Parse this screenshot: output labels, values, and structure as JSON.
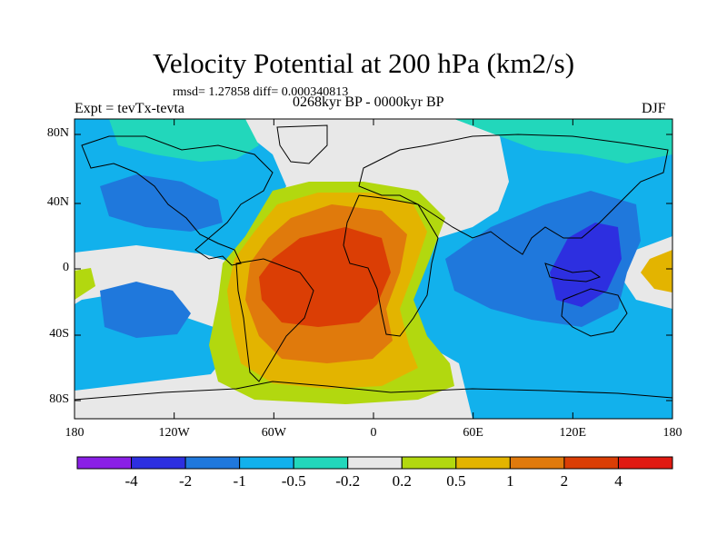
{
  "header": {
    "title": "Velocity Potential at 200 hPa (km2/s)",
    "stats": "rmsd= 1.27858 diff= 0.000340813",
    "experiment": "Expt = tevTx-tevta",
    "period": "0268kyr BP - 0000kyr BP",
    "season": "DJF"
  },
  "axes": {
    "lat_ticks": [
      "80N",
      "40N",
      "0",
      "40S",
      "80S"
    ],
    "lon_ticks": [
      "180",
      "120W",
      "60W",
      "0",
      "60E",
      "120E",
      "180"
    ]
  },
  "colorbar": {
    "labels": [
      "-4",
      "-2",
      "-1",
      "-0.5",
      "-0.2",
      "0.2",
      "0.5",
      "1",
      "2",
      "4"
    ],
    "colors": [
      "#8a1fe6",
      "#2d2fe0",
      "#1f78dc",
      "#12b1ec",
      "#22d7bb",
      "#e8e8e8",
      "#b2d80f",
      "#e3b400",
      "#e07a0c",
      "#db3e05",
      "#e01a12"
    ]
  },
  "map_colors": {
    "background": "#12b1ec",
    "land_outline": "#000000"
  }
}
